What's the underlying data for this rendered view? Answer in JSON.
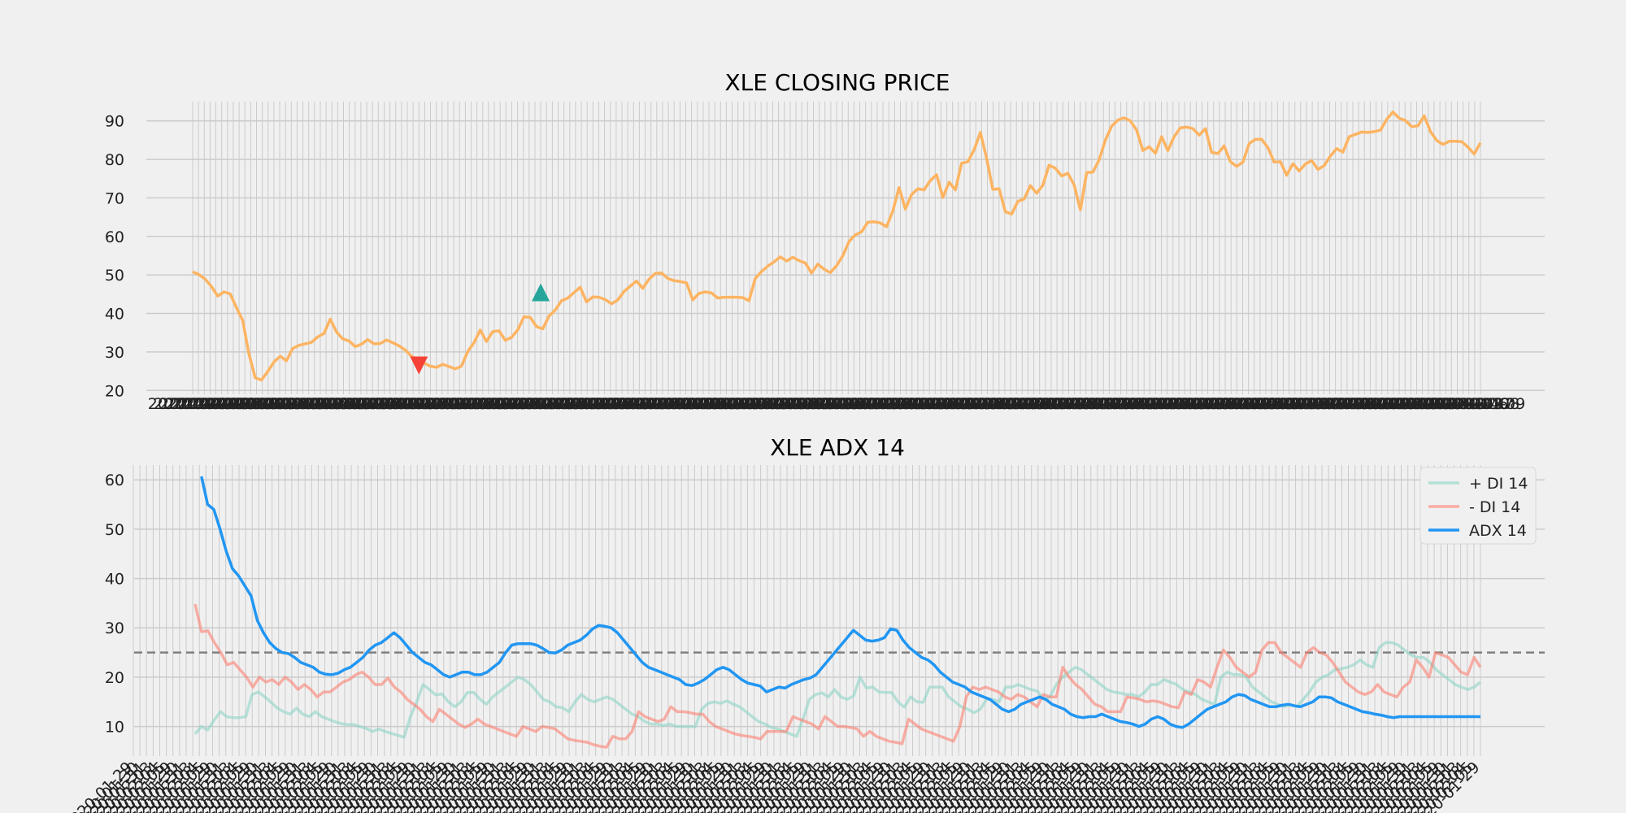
{
  "chart_data": [
    {
      "type": "line",
      "title": "XLE CLOSING PRICE",
      "xlabel": "",
      "ylabel": "",
      "ylim": [
        19,
        95
      ],
      "yticks": [
        20,
        30,
        40,
        50,
        60,
        70,
        80,
        90
      ],
      "grid": true,
      "legend": "none",
      "tick_dates": [
        "2020-04-01",
        "2020-04-02",
        "2020-04-03",
        "2020-04-06",
        "2020-04-07",
        "2020-04-08",
        "2020-04-09",
        "2020-04-13"
      ],
      "series": [
        {
          "color": "#fdb462",
          "x_range": [
            0,
            222
          ],
          "values": [
            50.8,
            50.1,
            48.9,
            47.0,
            44.5,
            45.6,
            45.1,
            41.5,
            38.2,
            29.5,
            23.3,
            22.7,
            24.9,
            27.4,
            28.9,
            27.7,
            30.9,
            31.7,
            32.1,
            32.5,
            33.9,
            34.8,
            38.5,
            35.2,
            33.4,
            32.9,
            31.4,
            32.0,
            33.2,
            32.1,
            32.2,
            33.1,
            32.4,
            31.6,
            30.5,
            28.9,
            28.0,
            27.1,
            26.3,
            26.0,
            26.8,
            26.2,
            25.6,
            26.3,
            30.1,
            32.4,
            35.7,
            32.7,
            35.3,
            35.5,
            33.0,
            33.8,
            35.7,
            39.1,
            39.0,
            36.6,
            36.0,
            39.3,
            40.9,
            43.3,
            44.0,
            45.4,
            46.8,
            43.0,
            44.3,
            44.2,
            43.6,
            42.5,
            43.5,
            45.7,
            47.1,
            48.4,
            46.5,
            48.9,
            50.4,
            50.5,
            49.1,
            48.5,
            48.3,
            47.9,
            43.5,
            45.2,
            45.6,
            45.3,
            44.0,
            44.2,
            44.2,
            44.2,
            44.1,
            43.3,
            49.1,
            50.9,
            52.3,
            53.4,
            54.7,
            53.6,
            54.6,
            53.7,
            53.1,
            50.5,
            52.8,
            51.5,
            50.6,
            52.4,
            55.0,
            58.7,
            60.4,
            61.2,
            63.7,
            63.8,
            63.5,
            62.5,
            66.6,
            72.7,
            67.1,
            70.9,
            72.4,
            72.1,
            74.5,
            76.0,
            70.1,
            74.1,
            72.1,
            79.0,
            79.4,
            82.5,
            87.0,
            80.3,
            72.2,
            72.4,
            66.4,
            65.8,
            69.1,
            69.7,
            73.2,
            71.2,
            73.3,
            78.5,
            77.7,
            75.7,
            76.4,
            73.4,
            66.9,
            76.6,
            76.7,
            79.9,
            85.0,
            88.6,
            90.2,
            90.8,
            90.0,
            87.6,
            82.3,
            83.3,
            81.6,
            85.9,
            82.3,
            85.9,
            88.2,
            88.4,
            88.0,
            86.3,
            88.0,
            81.8,
            81.5,
            83.5,
            79.4,
            78.2,
            79.3,
            84.1,
            85.2,
            85.2,
            83.0,
            79.3,
            79.4,
            75.9,
            78.9,
            77.0,
            78.8,
            79.7,
            77.4,
            78.4,
            80.9,
            82.8,
            81.9,
            85.9,
            86.5,
            87.1,
            87.0,
            87.2,
            87.6,
            90.4,
            92.3,
            90.7,
            90.1,
            88.5,
            88.7,
            91.3,
            87.2,
            84.9,
            83.9,
            84.7,
            84.7,
            84.6,
            83.2,
            81.4,
            84.3
          ]
        }
      ],
      "markers": [
        {
          "type": "buy",
          "x": 60,
          "y": 45.5,
          "color": "#26a69a"
        },
        {
          "type": "sell",
          "x": 39,
          "y": 26.5,
          "color": "#f44336"
        }
      ]
    },
    {
      "type": "line",
      "title": "XLE ADX 14",
      "xlabel": "",
      "ylabel": "",
      "ylim": [
        4,
        63
      ],
      "yticks": [
        10,
        20,
        30,
        40,
        50,
        60
      ],
      "grid": true,
      "legend": "top-right",
      "reference_line": {
        "y": 25,
        "color": "#808080",
        "style": "dashed"
      },
      "tick_dates": [
        "2020-01-29",
        "2020-01-30",
        "2020-01-31",
        "2020-02-03",
        "2020-02-04",
        "2020-02-05"
      ],
      "series": [
        {
          "name": "+ DI 14",
          "color": "#8dd3c7",
          "x_range": [
            0,
            204
          ],
          "values": [
            8.5,
            10.0,
            9.3,
            11.3,
            13.0,
            12.0,
            11.8,
            11.8,
            12.0,
            16.5,
            17.0,
            16.0,
            14.9,
            13.7,
            13.0,
            12.5,
            13.7,
            12.5,
            12.0,
            13.0,
            12.0,
            11.5,
            11.0,
            10.6,
            10.4,
            10.4,
            10.0,
            9.6,
            9.0,
            9.5,
            9.0,
            8.6,
            8.2,
            7.8,
            12.0,
            15.0,
            18.5,
            17.5,
            16.4,
            16.6,
            15.0,
            14.0,
            15.0,
            16.9,
            16.9,
            15.5,
            14.5,
            16.0,
            17.0,
            18.0,
            19.0,
            20.0,
            19.5,
            18.5,
            17.0,
            15.5,
            15.0,
            14.0,
            13.8,
            13.0,
            15.0,
            16.5,
            15.5,
            15.0,
            15.5,
            16.0,
            15.5,
            14.5,
            13.5,
            12.5,
            12.0,
            11.0,
            10.5,
            10.5,
            10.2,
            10.5,
            10.0,
            10.0,
            10.0,
            10.0,
            13.5,
            14.7,
            15.0,
            14.7,
            15.2,
            14.5,
            14.0,
            13.0,
            12.0,
            11.0,
            10.5,
            9.8,
            9.5,
            9.0,
            8.5,
            8.0,
            11.5,
            15.5,
            16.5,
            16.8,
            16.0,
            17.5,
            16.0,
            15.5,
            16.2,
            20.0,
            17.8,
            18.0,
            17.0,
            16.9,
            16.9,
            15.0,
            13.9,
            16.0,
            15.0,
            14.9,
            18.0,
            18.0,
            18.0,
            16.0,
            15.0,
            14.0,
            13.5,
            12.8,
            13.5,
            15.5,
            15.5,
            15.0,
            18.0,
            18.0,
            18.5,
            18.0,
            17.5,
            17.2,
            15.5,
            16.0,
            18.5,
            20.0,
            21.0,
            22.0,
            21.5,
            20.5,
            19.5,
            18.5,
            17.5,
            17.0,
            16.8,
            16.5,
            16.5,
            16.0,
            17.0,
            18.5,
            18.5,
            19.5,
            19.0,
            18.5,
            17.5,
            17.0,
            16.5,
            15.5,
            15.0,
            14.5,
            20.0,
            21.0,
            20.5,
            20.5,
            20.0,
            18.0,
            17.0,
            16.0,
            15.0,
            14.5,
            14.0,
            14.5,
            14.0,
            15.5,
            17.0,
            19.0,
            20.0,
            20.5,
            21.5,
            21.7,
            22.0,
            22.5,
            23.5,
            22.5,
            22.0,
            26.0,
            27.0,
            27.0,
            26.5,
            25.5,
            24.5,
            24.0,
            24.0,
            23.0,
            21.5,
            20.5,
            19.5,
            18.5,
            18.0,
            17.5,
            18.0,
            19.0
          ]
        },
        {
          "name": "- DI 14",
          "color": "#fb8072",
          "x_range": [
            0,
            204
          ],
          "values": [
            34.8,
            29.2,
            29.4,
            27.0,
            25.0,
            22.5,
            23.0,
            21.5,
            20.0,
            18.0,
            20.0,
            19.0,
            19.5,
            18.5,
            20.0,
            19.0,
            17.5,
            18.5,
            17.5,
            16.0,
            17.0,
            17.0,
            18.0,
            19.0,
            19.5,
            20.5,
            21.0,
            20.0,
            18.5,
            18.5,
            19.8,
            18.0,
            17.0,
            15.5,
            14.5,
            13.5,
            12.0,
            11.0,
            13.5,
            12.5,
            11.5,
            10.5,
            9.8,
            10.5,
            11.5,
            10.5,
            10.0,
            9.5,
            9.0,
            8.5,
            8.0,
            10.0,
            9.5,
            9.0,
            10.0,
            9.8,
            9.5,
            8.5,
            7.5,
            7.2,
            7.0,
            6.8,
            6.3,
            6.0,
            5.8,
            8.0,
            7.5,
            7.5,
            9.0,
            13.0,
            12.0,
            11.5,
            11.0,
            11.5,
            14.0,
            13.0,
            13.0,
            12.8,
            12.5,
            12.5,
            11.0,
            10.0,
            9.5,
            9.0,
            8.5,
            8.2,
            8.0,
            7.8,
            7.5,
            9.0,
            9.0,
            9.0,
            9.0,
            12.0,
            11.5,
            11.0,
            10.5,
            9.5,
            12.0,
            11.0,
            10.0,
            10.0,
            9.8,
            9.5,
            8.0,
            9.0,
            8.0,
            7.5,
            7.0,
            6.8,
            6.5,
            11.5,
            10.5,
            9.5,
            9.0,
            8.5,
            8.0,
            7.5,
            7.0,
            10.0,
            16.0,
            18.0,
            17.5,
            18.0,
            17.5,
            17.0,
            16.0,
            15.5,
            16.5,
            16.0,
            15.0,
            14.0,
            16.5,
            16.0,
            16.0,
            22.0,
            20.0,
            18.5,
            17.5,
            16.0,
            14.5,
            14.0,
            13.0,
            13.0,
            13.0,
            16.0,
            15.8,
            15.5,
            15.0,
            15.2,
            15.0,
            14.5,
            14.0,
            13.8,
            17.0,
            16.5,
            19.5,
            19.0,
            18.0,
            22.0,
            25.5,
            24.0,
            22.0,
            21.0,
            20.0,
            21.0,
            25.5,
            27.0,
            27.0,
            25.0,
            24.0,
            23.0,
            22.0,
            25.0,
            26.0,
            25.0,
            24.5,
            23.0,
            21.0,
            19.0,
            18.0,
            17.0,
            16.5,
            17.0,
            18.5,
            17.0,
            16.5,
            16.0,
            18.0,
            19.0,
            23.5,
            22.0,
            20.0,
            25.0,
            24.5,
            24.0,
            22.5,
            21.0,
            20.5,
            24.0,
            22.0
          ]
        },
        {
          "name": "ADX 14",
          "color": "#2196f3",
          "x_range": [
            1,
            204
          ],
          "values": [
            60.7,
            55.0,
            54.0,
            50.0,
            45.5,
            42.0,
            40.5,
            38.5,
            36.5,
            31.5,
            29.0,
            27.0,
            25.8,
            25.0,
            24.8,
            24.0,
            23.0,
            22.5,
            22.0,
            21.0,
            20.6,
            20.5,
            20.8,
            21.5,
            22.0,
            23.0,
            24.0,
            25.5,
            26.5,
            27.0,
            28.0,
            29.0,
            28.0,
            26.5,
            25.0,
            24.0,
            23.0,
            22.5,
            21.5,
            20.5,
            20.0,
            20.5,
            21.0,
            21.0,
            20.5,
            20.5,
            21.0,
            22.0,
            23.0,
            25.0,
            26.5,
            26.8,
            26.8,
            26.8,
            26.5,
            25.8,
            25.0,
            24.9,
            25.5,
            26.5,
            27.0,
            27.5,
            28.5,
            29.8,
            30.5,
            30.3,
            30.0,
            29.0,
            27.5,
            26.0,
            24.5,
            23.0,
            22.0,
            21.5,
            21.0,
            20.5,
            20.0,
            19.5,
            18.5,
            18.3,
            18.8,
            19.5,
            20.5,
            21.5,
            22.0,
            21.5,
            20.5,
            19.5,
            18.8,
            18.5,
            18.2,
            17.0,
            17.5,
            18.0,
            17.8,
            18.5,
            19.0,
            19.5,
            19.8,
            20.5,
            22.0,
            23.5,
            25.0,
            26.5,
            28.0,
            29.5,
            28.5,
            27.5,
            27.3,
            27.5,
            28.0,
            29.8,
            29.5,
            27.5,
            26.0,
            25.0,
            24.0,
            23.5,
            22.5,
            21.0,
            20.0,
            19.0,
            18.5,
            18.0,
            17.0,
            16.5,
            16.0,
            15.5,
            14.5,
            13.5,
            13.0,
            13.5,
            14.5,
            15.0,
            15.5,
            16.0,
            15.5,
            14.5,
            14.0,
            13.5,
            12.5,
            12.0,
            11.8,
            12.0,
            12.0,
            12.5,
            12.0,
            11.5,
            11.0,
            10.8,
            10.5,
            10.0,
            10.5,
            11.5,
            12.0,
            11.5,
            10.5,
            10.0,
            9.8,
            10.5,
            11.5,
            12.5,
            13.5,
            14.0,
            14.5,
            15.0,
            16.0,
            16.5,
            16.3,
            15.5,
            15.0,
            14.5,
            14.0,
            14.0,
            14.3,
            14.5,
            14.2,
            14.0,
            14.5,
            15.0,
            16.0,
            16.0,
            15.8,
            15.0,
            14.5,
            14.0,
            13.5,
            13.0,
            12.8,
            12.5,
            12.3,
            12.0,
            11.8,
            12.0,
            12.0,
            12.0,
            12.0,
            12.0,
            12.0,
            12.0,
            12.0,
            12.0,
            12.0,
            12.0,
            12.0,
            12.0,
            12.0
          ]
        }
      ]
    }
  ]
}
